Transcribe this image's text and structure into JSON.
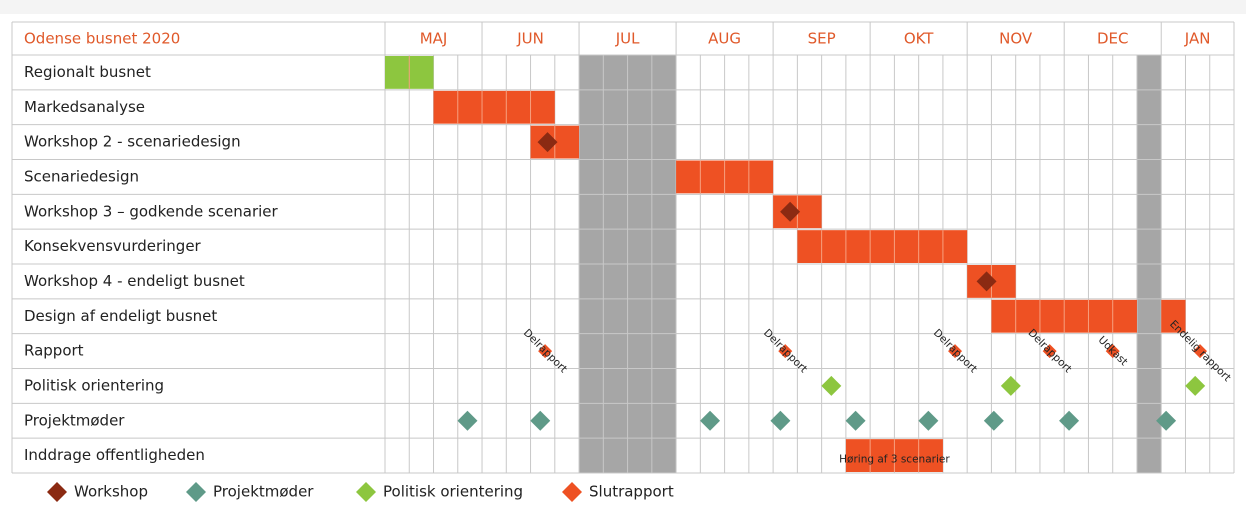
{
  "chart_data": {
    "type": "gantt",
    "title": "Odense busnet 2020",
    "months": [
      {
        "label": "MAJ",
        "weeks": 4
      },
      {
        "label": "JUN",
        "weeks": 4
      },
      {
        "label": "JUL",
        "weeks": 4
      },
      {
        "label": "AUG",
        "weeks": 4
      },
      {
        "label": "SEP",
        "weeks": 4
      },
      {
        "label": "OKT",
        "weeks": 4
      },
      {
        "label": "NOV",
        "weeks": 4
      },
      {
        "label": "DEC",
        "weeks": 4
      },
      {
        "label": "JAN",
        "weeks": 3
      }
    ],
    "shaded_weeks": [
      8,
      9,
      10,
      11,
      31
    ],
    "shade_color": "#a6a6a6",
    "rows": [
      {
        "label": "Regionalt busnet",
        "bars": [
          {
            "start": 0,
            "end": 1,
            "color": "#8dc63f"
          }
        ],
        "markers": []
      },
      {
        "label": "Markedsanalyse",
        "bars": [
          {
            "start": 2,
            "end": 6,
            "color": "#ee5123"
          }
        ],
        "markers": []
      },
      {
        "label": "Workshop 2 - scenariedesign",
        "bars": [
          {
            "start": 6,
            "end": 7,
            "color": "#ee5123"
          }
        ],
        "markers": [
          {
            "at": 6.7,
            "color": "#8b2a12"
          }
        ]
      },
      {
        "label": "Scenariedesign",
        "bars": [
          {
            "start": 12,
            "end": 15,
            "color": "#ee5123"
          }
        ],
        "markers": []
      },
      {
        "label": "Workshop 3 – godkende scenarier",
        "bars": [
          {
            "start": 16,
            "end": 17,
            "color": "#ee5123"
          }
        ],
        "markers": [
          {
            "at": 16.7,
            "color": "#8b2a12"
          }
        ]
      },
      {
        "label": "Konsekvensvurderinger",
        "bars": [
          {
            "start": 17,
            "end": 23,
            "color": "#ee5123"
          }
        ],
        "markers": []
      },
      {
        "label": "Workshop 4 - endeligt busnet",
        "bars": [
          {
            "start": 24,
            "end": 25,
            "color": "#ee5123"
          }
        ],
        "markers": [
          {
            "at": 24.8,
            "color": "#8b2a12"
          }
        ]
      },
      {
        "label": "Design af endeligt busnet",
        "bars": [
          {
            "start": 25,
            "end": 30,
            "color": "#ee5123"
          },
          {
            "start": 32,
            "end": 32,
            "color": "#ee5123"
          }
        ],
        "markers": []
      },
      {
        "label": "Rapport",
        "bars": [],
        "markers": [
          {
            "at": 6.6,
            "color": "#ee5123",
            "label": "Delrapport"
          },
          {
            "at": 16.5,
            "color": "#ee5123",
            "label": "Delrapport"
          },
          {
            "at": 23.5,
            "color": "#ee5123",
            "label": "Delrapport"
          },
          {
            "at": 27.4,
            "color": "#ee5123",
            "label": "Delrapport"
          },
          {
            "at": 30.0,
            "color": "#ee5123",
            "label": "Udkast"
          },
          {
            "at": 33.6,
            "color": "#ee5123",
            "label": "Endelig rapport"
          }
        ]
      },
      {
        "label": "Politisk orientering",
        "bars": [],
        "markers": [
          {
            "at": 18.4,
            "color": "#8dc63f"
          },
          {
            "at": 25.8,
            "color": "#8dc63f"
          },
          {
            "at": 33.4,
            "color": "#8dc63f"
          }
        ]
      },
      {
        "label": "Projektmøder",
        "bars": [],
        "markers": [
          {
            "at": 3.4,
            "color": "#5f9a88"
          },
          {
            "at": 6.4,
            "color": "#5f9a88"
          },
          {
            "at": 13.4,
            "color": "#5f9a88"
          },
          {
            "at": 16.3,
            "color": "#5f9a88"
          },
          {
            "at": 19.4,
            "color": "#5f9a88"
          },
          {
            "at": 22.4,
            "color": "#5f9a88"
          },
          {
            "at": 25.1,
            "color": "#5f9a88"
          },
          {
            "at": 28.2,
            "color": "#5f9a88"
          },
          {
            "at": 32.2,
            "color": "#5f9a88"
          }
        ]
      },
      {
        "label": "Inddrage offentligheden",
        "bars": [
          {
            "start": 19,
            "end": 22,
            "color": "#ee5123",
            "label": "Høring af 3 scenarier"
          }
        ],
        "markers": []
      }
    ],
    "legend": [
      {
        "label": "Workshop",
        "color": "#8b2a12"
      },
      {
        "label": "Projektmøder",
        "color": "#5f9a88"
      },
      {
        "label": "Politisk orientering",
        "color": "#8dc63f"
      },
      {
        "label": "Slutrapport",
        "color": "#ee5123"
      }
    ]
  }
}
